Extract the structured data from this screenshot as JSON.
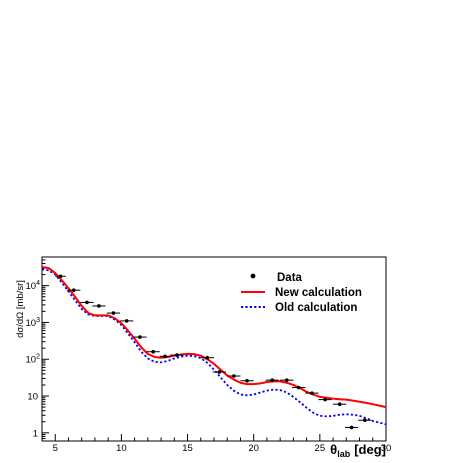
{
  "chart_data": {
    "type": "line",
    "title": "",
    "xlabel": "θlab [deg]",
    "xlabel_main": "θ",
    "xlabel_sub": "lab",
    "xlabel_unit": "[deg]",
    "ylabel": "dσ/dΩ [mb/sr]",
    "xlim": [
      4,
      30
    ],
    "ylim": [
      0.6,
      60000
    ],
    "yscale": "log",
    "xticks": [
      5,
      10,
      15,
      20,
      25,
      30
    ],
    "yticks": [
      {
        "value": 1,
        "base": "1",
        "exp": ""
      },
      {
        "value": 10,
        "base": "10",
        "exp": ""
      },
      {
        "value": 100,
        "base": "10",
        "exp": "2"
      },
      {
        "value": 1000,
        "base": "10",
        "exp": "3"
      },
      {
        "value": 10000,
        "base": "10",
        "exp": "4"
      }
    ],
    "grid": false,
    "legend_position": "top-right",
    "legend": [
      "Data",
      "New calculation",
      "Old calculation"
    ],
    "series": [
      {
        "name": "Data",
        "kind": "points",
        "color": "#000000",
        "points": [
          {
            "x": 5.4,
            "y": 18000,
            "xerr": 0.4
          },
          {
            "x": 6.4,
            "y": 7500,
            "xerr": 0.5
          },
          {
            "x": 7.4,
            "y": 3500,
            "xerr": 0.5
          },
          {
            "x": 8.3,
            "y": 2800,
            "xerr": 0.5
          },
          {
            "x": 9.4,
            "y": 1800,
            "xerr": 0.5
          },
          {
            "x": 10.4,
            "y": 1100,
            "xerr": 0.5
          },
          {
            "x": 11.4,
            "y": 400,
            "xerr": 0.5
          },
          {
            "x": 12.4,
            "y": 160,
            "xerr": 0.5
          },
          {
            "x": 13.3,
            "y": 120,
            "xerr": 0.4
          },
          {
            "x": 14.2,
            "y": 130,
            "xerr": 0.5
          },
          {
            "x": 16.5,
            "y": 110,
            "xerr": 0.5
          },
          {
            "x": 17.4,
            "y": 45,
            "xerr": 0.5
          },
          {
            "x": 18.5,
            "y": 35,
            "xerr": 0.5
          },
          {
            "x": 19.5,
            "y": 26,
            "xerr": 0.5
          },
          {
            "x": 21.4,
            "y": 27,
            "xerr": 0.5
          },
          {
            "x": 22.5,
            "y": 27,
            "xerr": 0.5
          },
          {
            "x": 23.4,
            "y": 17,
            "xerr": 0.5
          },
          {
            "x": 24.4,
            "y": 12,
            "xerr": 0.5
          },
          {
            "x": 25.4,
            "y": 8,
            "xerr": 0.5
          },
          {
            "x": 26.5,
            "y": 6,
            "xerr": 0.5
          },
          {
            "x": 27.4,
            "y": 1.4,
            "xerr": 0.5
          },
          {
            "x": 28.4,
            "y": 2.2,
            "xerr": 0.5
          }
        ]
      },
      {
        "name": "New calculation",
        "kind": "line",
        "color": "#ff0000",
        "dash": "solid",
        "x": [
          4,
          4.5,
          5,
          5.5,
          6,
          6.5,
          7,
          7.5,
          8,
          8.5,
          9,
          9.5,
          10,
          10.5,
          11,
          11.5,
          12,
          12.5,
          13,
          13.5,
          14,
          14.5,
          15,
          15.5,
          16,
          16.5,
          17,
          17.5,
          18,
          18.5,
          19,
          19.5,
          20,
          20.5,
          21,
          21.5,
          22,
          22.5,
          23,
          23.5,
          24,
          24.5,
          25,
          25.5,
          26,
          26.5,
          27,
          27.5,
          28,
          28.5,
          29,
          29.5,
          30
        ],
        "y": [
          32000,
          30000,
          22000,
          14000,
          8500,
          5000,
          2800,
          1800,
          1550,
          1550,
          1550,
          1300,
          950,
          600,
          360,
          210,
          140,
          115,
          110,
          115,
          125,
          135,
          140,
          138,
          125,
          100,
          75,
          52,
          36,
          28,
          23,
          21,
          21,
          22,
          24,
          25,
          25,
          23,
          20,
          16.5,
          13,
          11,
          9.5,
          9,
          8.5,
          8.2,
          8,
          7.5,
          7,
          6.5,
          6,
          5.5,
          5
        ]
      },
      {
        "name": "Old calculation",
        "kind": "line",
        "color": "#0000ff",
        "dash": "dotted",
        "x": [
          4,
          4.5,
          5,
          5.5,
          6,
          6.5,
          7,
          7.5,
          8,
          8.5,
          9,
          9.5,
          10,
          10.5,
          11,
          11.5,
          12,
          12.5,
          13,
          13.5,
          14,
          14.5,
          15,
          15.5,
          16,
          16.5,
          17,
          17.5,
          18,
          18.5,
          19,
          19.5,
          20,
          20.5,
          21,
          21.5,
          22,
          22.5,
          23,
          23.5,
          24,
          24.5,
          25,
          25.5,
          26,
          26.5,
          27,
          27.5,
          28,
          28.5,
          29,
          29.5,
          30
        ],
        "y": [
          28000,
          26000,
          20000,
          12000,
          7000,
          4000,
          2300,
          1650,
          1500,
          1500,
          1500,
          1200,
          850,
          500,
          290,
          160,
          105,
          85,
          82,
          90,
          105,
          118,
          125,
          122,
          108,
          80,
          52,
          32,
          20,
          14,
          11,
          10.5,
          11,
          12.5,
          14,
          15,
          14.5,
          12.5,
          9.5,
          6.8,
          4.8,
          3.5,
          2.9,
          2.8,
          2.9,
          3.1,
          3.2,
          3.1,
          2.9,
          2.5,
          2.1,
          1.9,
          1.7
        ]
      }
    ]
  }
}
